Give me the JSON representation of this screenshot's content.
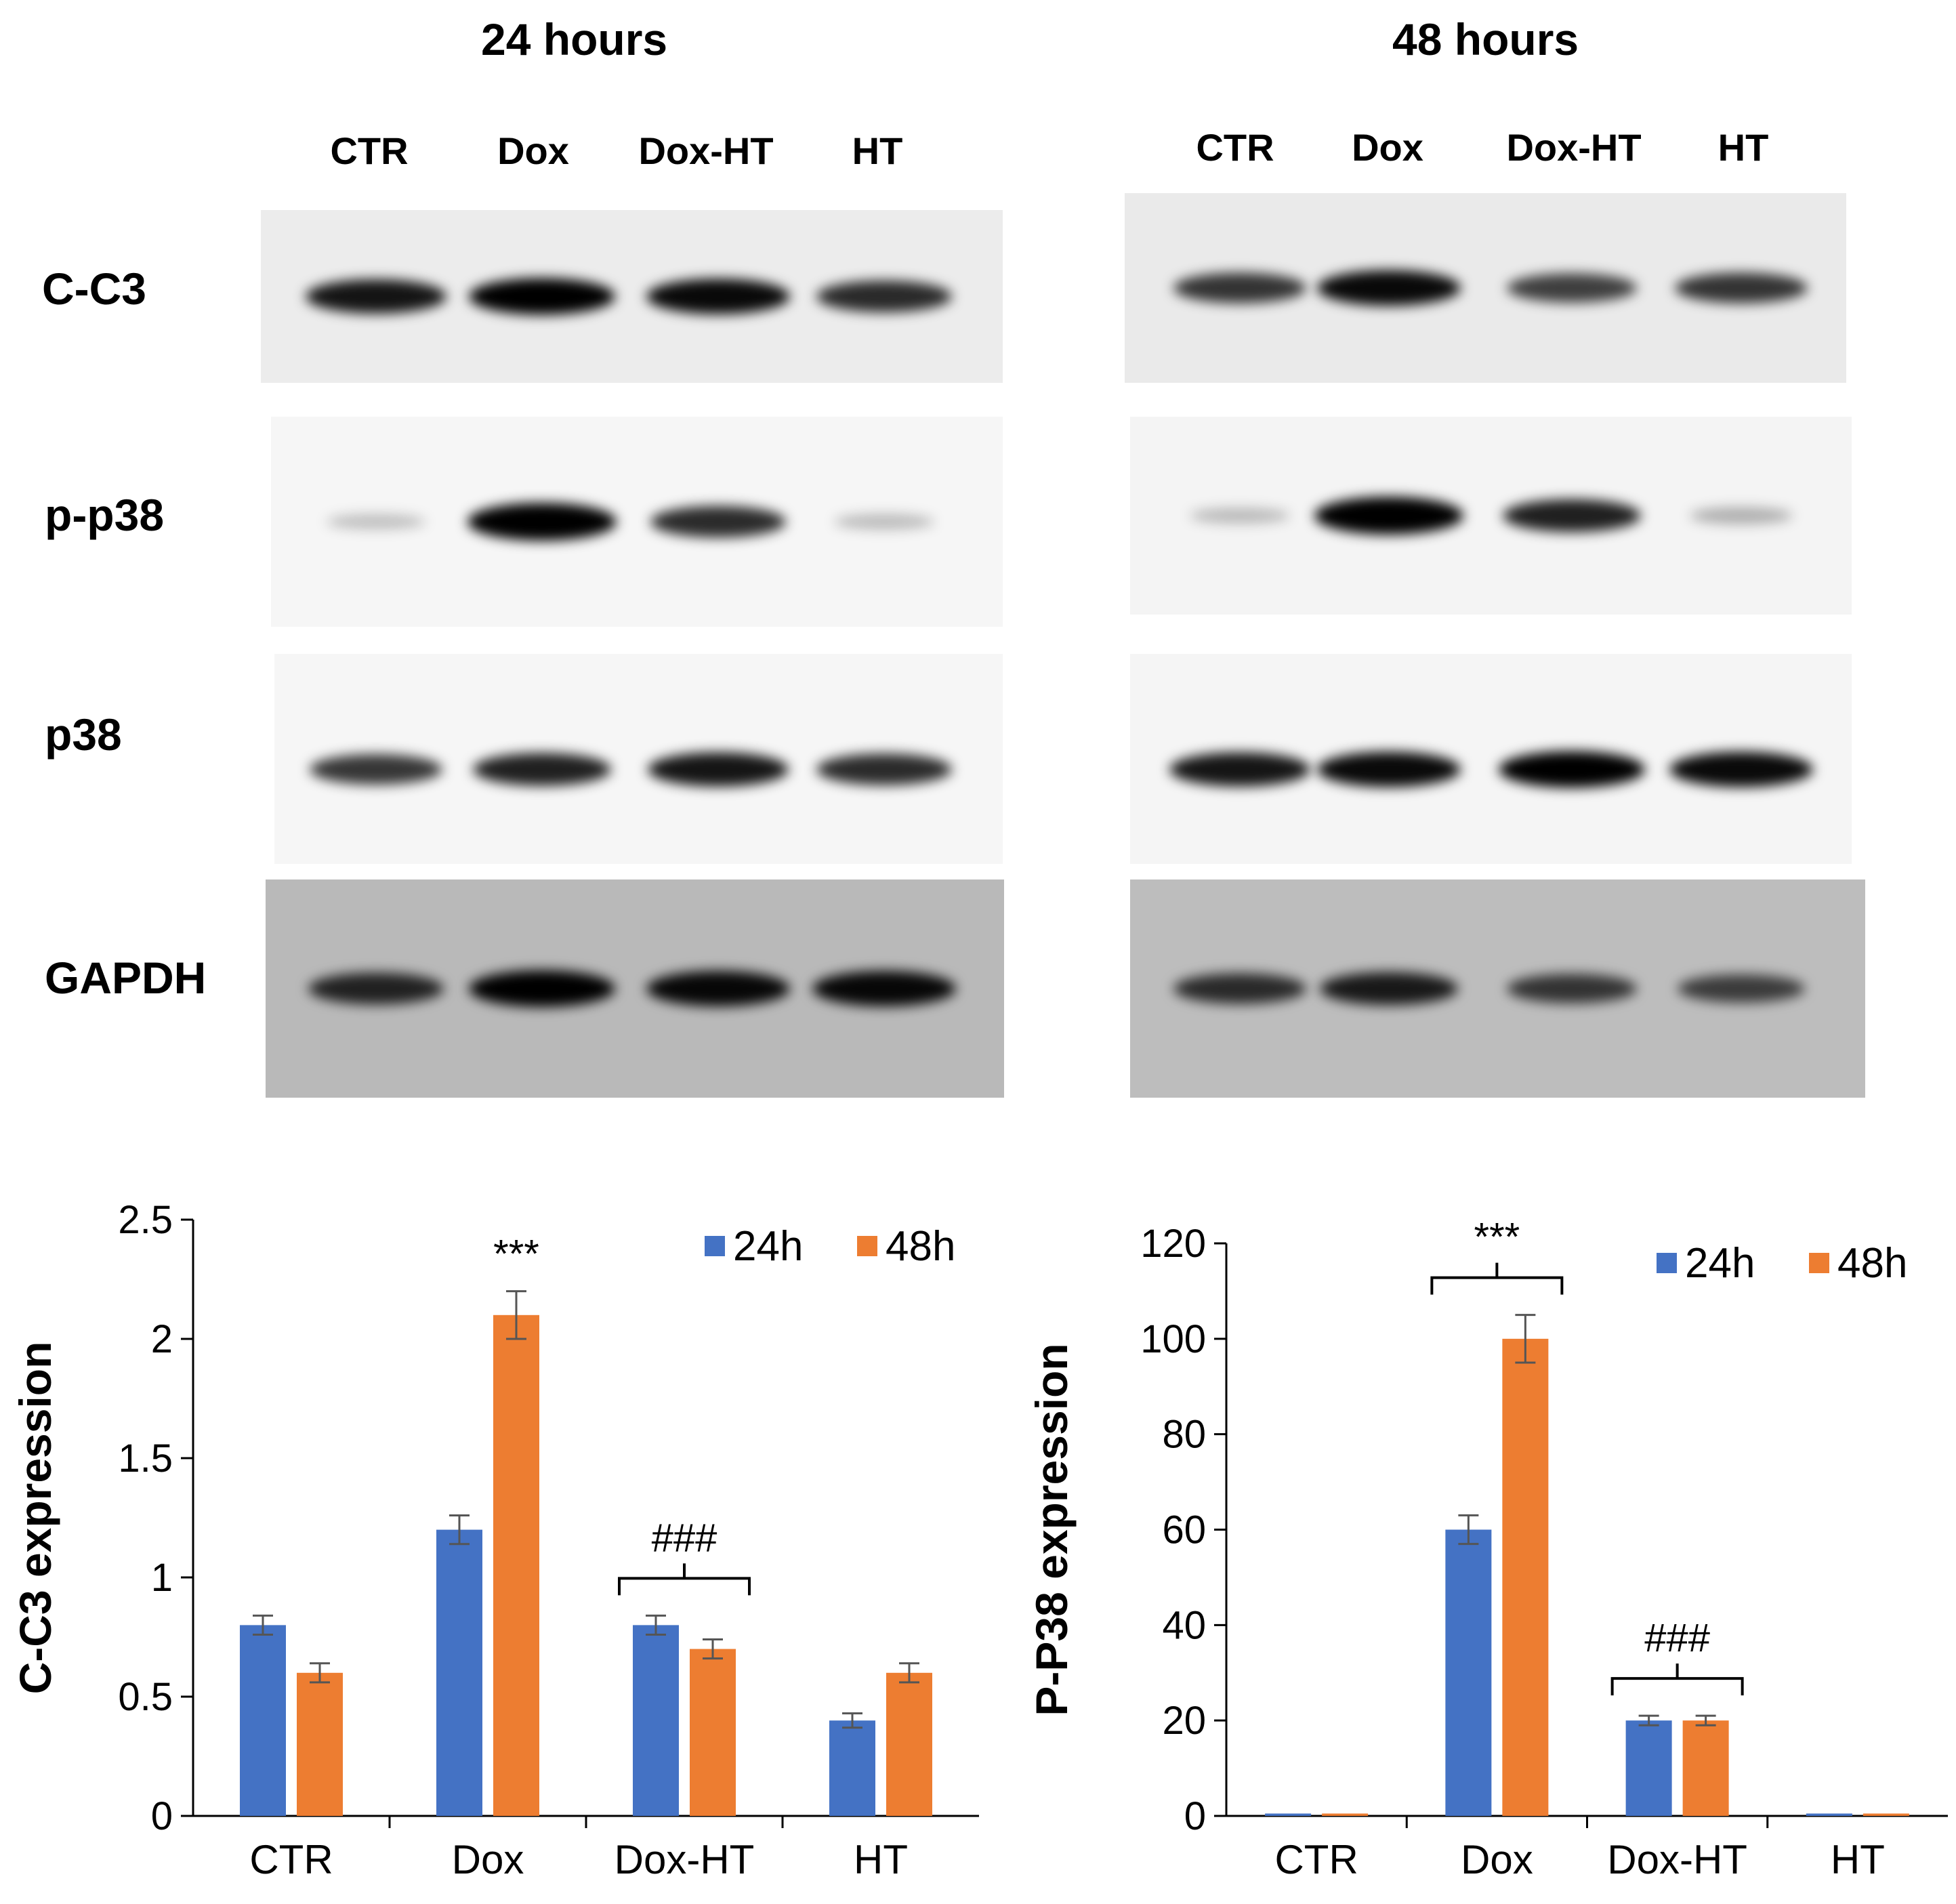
{
  "blots": {
    "panels": [
      {
        "title": "24 hours",
        "lanes": [
          "CTR",
          "Dox",
          "Dox-HT",
          "HT"
        ]
      },
      {
        "title": "48 hours",
        "lanes": [
          "CTR",
          "Dox",
          "Dox-HT",
          "HT"
        ]
      }
    ],
    "rows": [
      "C-C3",
      "p-p38",
      "p38",
      "GAPDH"
    ],
    "band_intensity": {
      "24 hours": {
        "C-C3": [
          0.85,
          0.95,
          0.9,
          0.75
        ],
        "p-p38": [
          0.08,
          1.0,
          0.75,
          0.1
        ],
        "p38": [
          0.7,
          0.8,
          0.85,
          0.75
        ],
        "GAPDH": [
          0.75,
          0.95,
          0.9,
          0.9
        ]
      },
      "48 hours": {
        "C-C3": [
          0.7,
          0.9,
          0.65,
          0.7
        ],
        "p-p38": [
          0.1,
          1.0,
          0.8,
          0.15
        ],
        "p38": [
          0.85,
          0.9,
          0.95,
          0.9
        ],
        "GAPDH": [
          0.7,
          0.8,
          0.65,
          0.6
        ]
      }
    }
  },
  "chart_data": [
    {
      "type": "bar",
      "categories": [
        "CTR",
        "Dox",
        "Dox-HT",
        "HT"
      ],
      "series": [
        {
          "name": "24h",
          "values": [
            0.8,
            1.2,
            0.8,
            0.4
          ],
          "errors": [
            0.04,
            0.06,
            0.04,
            0.03
          ]
        },
        {
          "name": "48h",
          "values": [
            0.6,
            2.1,
            0.7,
            0.6
          ],
          "errors": [
            0.04,
            0.1,
            0.04,
            0.04
          ]
        }
      ],
      "ylabel": "C-C3 expression",
      "ylim": [
        0,
        2.5
      ],
      "yticks": [
        "0",
        "0.5",
        "1",
        "1.5",
        "2",
        "2.5"
      ],
      "annotations": [
        {
          "text": "***",
          "category": "Dox",
          "bracket": false
        },
        {
          "text": "###",
          "category": "Dox-HT",
          "bracket": true
        }
      ],
      "legend": "top-right",
      "grid": false
    },
    {
      "type": "bar",
      "categories": [
        "CTR",
        "Dox",
        "Dox-HT",
        "HT"
      ],
      "series": [
        {
          "name": "24h",
          "values": [
            0.5,
            60,
            20,
            0.5
          ],
          "errors": [
            0,
            3,
            1,
            0
          ]
        },
        {
          "name": "48h",
          "values": [
            0.5,
            100,
            20,
            0.5
          ],
          "errors": [
            0,
            5,
            1,
            0
          ]
        }
      ],
      "ylabel": "P-P38 expression",
      "ylim": [
        0,
        120
      ],
      "yticks": [
        "0",
        "20",
        "40",
        "60",
        "80",
        "100",
        "120"
      ],
      "annotations": [
        {
          "text": "***",
          "category": "Dox",
          "bracket": true
        },
        {
          "text": "###",
          "category": "Dox-HT",
          "bracket": true
        }
      ],
      "legend": "top-right",
      "grid": false
    }
  ],
  "colors": {
    "series_24h": "#4472C4",
    "series_48h": "#ED7D31",
    "axis": "#000000"
  }
}
